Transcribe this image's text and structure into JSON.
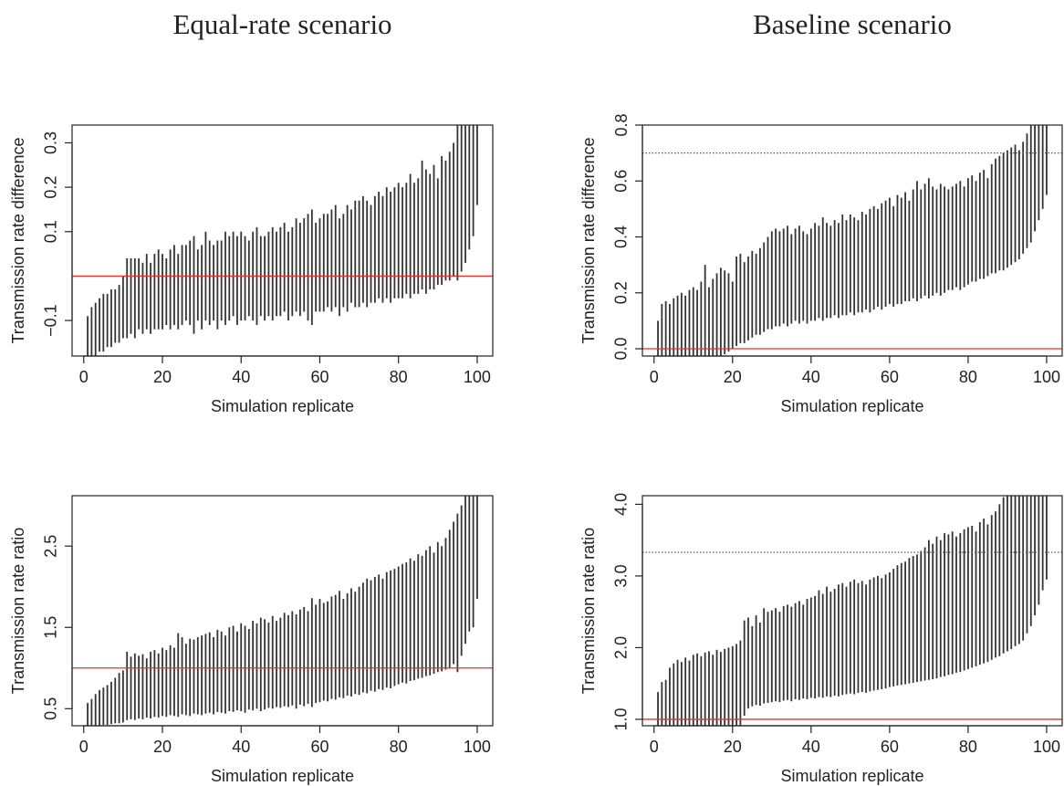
{
  "chart_data": [
    {
      "type": "range",
      "title": "Equal-rate scenario",
      "xlabel": "Simulation replicate",
      "ylabel": "Transmission rate difference",
      "color": "#333333",
      "x": [
        1,
        2,
        3,
        4,
        5,
        6,
        7,
        8,
        9,
        10,
        11,
        12,
        13,
        14,
        15,
        16,
        17,
        18,
        19,
        20,
        21,
        22,
        23,
        24,
        25,
        26,
        27,
        28,
        29,
        30,
        31,
        32,
        33,
        34,
        35,
        36,
        37,
        38,
        39,
        40,
        41,
        42,
        43,
        44,
        45,
        46,
        47,
        48,
        49,
        50,
        51,
        52,
        53,
        54,
        55,
        56,
        57,
        58,
        59,
        60,
        61,
        62,
        63,
        64,
        65,
        66,
        67,
        68,
        69,
        70,
        71,
        72,
        73,
        74,
        75,
        76,
        77,
        78,
        79,
        80,
        81,
        82,
        83,
        84,
        85,
        86,
        87,
        88,
        89,
        90,
        91,
        92,
        93,
        94,
        95,
        96,
        97,
        98,
        99,
        100
      ],
      "low": [
        -0.21,
        -0.19,
        -0.18,
        -0.17,
        -0.17,
        -0.16,
        -0.16,
        -0.15,
        -0.15,
        -0.14,
        -0.14,
        -0.13,
        -0.14,
        -0.12,
        -0.13,
        -0.12,
        -0.13,
        -0.12,
        -0.12,
        -0.12,
        -0.11,
        -0.12,
        -0.11,
        -0.12,
        -0.11,
        -0.1,
        -0.11,
        -0.13,
        -0.1,
        -0.12,
        -0.1,
        -0.11,
        -0.1,
        -0.12,
        -0.1,
        -0.11,
        -0.1,
        -0.09,
        -0.11,
        -0.1,
        -0.1,
        -0.09,
        -0.1,
        -0.11,
        -0.09,
        -0.1,
        -0.09,
        -0.1,
        -0.09,
        -0.09,
        -0.08,
        -0.1,
        -0.09,
        -0.08,
        -0.09,
        -0.08,
        -0.1,
        -0.11,
        -0.08,
        -0.08,
        -0.08,
        -0.07,
        -0.08,
        -0.07,
        -0.09,
        -0.07,
        -0.08,
        -0.06,
        -0.07,
        -0.07,
        -0.06,
        -0.07,
        -0.06,
        -0.06,
        -0.05,
        -0.06,
        -0.05,
        -0.06,
        -0.05,
        -0.05,
        -0.05,
        -0.04,
        -0.05,
        -0.04,
        -0.04,
        -0.03,
        -0.04,
        -0.03,
        -0.03,
        -0.02,
        -0.02,
        -0.01,
        -0.01,
        0,
        -0.01,
        0.01,
        0.03,
        0.06,
        0.09,
        0.16
      ],
      "high": [
        -0.09,
        -0.07,
        -0.06,
        -0.05,
        -0.04,
        -0.04,
        -0.03,
        -0.03,
        -0.02,
        0,
        0.04,
        0.04,
        0.04,
        0.04,
        0.03,
        0.05,
        0.03,
        0.05,
        0.06,
        0.05,
        0.04,
        0.06,
        0.07,
        0.05,
        0.07,
        0.07,
        0.08,
        0.09,
        0.06,
        0.07,
        0.1,
        0.08,
        0.07,
        0.08,
        0.08,
        0.1,
        0.09,
        0.1,
        0.09,
        0.1,
        0.09,
        0.08,
        0.1,
        0.11,
        0.09,
        0.09,
        0.1,
        0.11,
        0.1,
        0.11,
        0.12,
        0.1,
        0.11,
        0.13,
        0.12,
        0.13,
        0.14,
        0.15,
        0.12,
        0.13,
        0.14,
        0.14,
        0.15,
        0.16,
        0.13,
        0.14,
        0.16,
        0.15,
        0.17,
        0.17,
        0.18,
        0.17,
        0.16,
        0.18,
        0.19,
        0.18,
        0.2,
        0.19,
        0.2,
        0.21,
        0.2,
        0.21,
        0.23,
        0.21,
        0.22,
        0.26,
        0.24,
        0.23,
        0.25,
        0.22,
        0.27,
        0.26,
        0.28,
        0.3,
        0.34,
        0.36,
        0.37,
        0.4,
        0.42,
        0.45
      ],
      "xlim": [
        -2.96,
        103.96
      ],
      "xticks": [
        0,
        20,
        40,
        60,
        80,
        100
      ],
      "ylim": [
        -0.18,
        0.34
      ],
      "yticks": [
        {
          "value": -0.1,
          "label": "−0.1"
        },
        0.1,
        0.2,
        0.3
      ],
      "hlines": [
        {
          "value": 0,
          "color": "#e8302a",
          "style": "solid"
        }
      ]
    },
    {
      "type": "range",
      "title": "Baseline scenario",
      "xlabel": "Simulation replicate",
      "ylabel": "Transmission rate difference",
      "color": "#333333",
      "x": [
        1,
        2,
        3,
        4,
        5,
        6,
        7,
        8,
        9,
        10,
        11,
        12,
        13,
        14,
        15,
        16,
        17,
        18,
        19,
        20,
        21,
        22,
        23,
        24,
        25,
        26,
        27,
        28,
        29,
        30,
        31,
        32,
        33,
        34,
        35,
        36,
        37,
        38,
        39,
        40,
        41,
        42,
        43,
        44,
        45,
        46,
        47,
        48,
        49,
        50,
        51,
        52,
        53,
        54,
        55,
        56,
        57,
        58,
        59,
        60,
        61,
        62,
        63,
        64,
        65,
        66,
        67,
        68,
        69,
        70,
        71,
        72,
        73,
        74,
        75,
        76,
        77,
        78,
        79,
        80,
        81,
        82,
        83,
        84,
        85,
        86,
        87,
        88,
        89,
        90,
        91,
        92,
        93,
        94,
        95,
        96,
        97,
        98,
        99,
        100
      ],
      "low": [
        -0.05,
        -0.05,
        -0.05,
        -0.04,
        -0.05,
        -0.04,
        -0.04,
        -0.04,
        -0.04,
        -0.04,
        -0.04,
        -0.03,
        -0.04,
        -0.03,
        -0.03,
        -0.03,
        -0.03,
        -0.02,
        -0.01,
        0,
        0.01,
        0.02,
        0.02,
        0.03,
        0.04,
        0.05,
        0.05,
        0.06,
        0.07,
        0.07,
        0.08,
        0.08,
        0.09,
        0.08,
        0.09,
        0.1,
        0.09,
        0.1,
        0.09,
        0.1,
        0.1,
        0.11,
        0.1,
        0.11,
        0.11,
        0.12,
        0.11,
        0.12,
        0.12,
        0.13,
        0.12,
        0.13,
        0.13,
        0.14,
        0.13,
        0.14,
        0.15,
        0.14,
        0.15,
        0.16,
        0.15,
        0.16,
        0.16,
        0.17,
        0.17,
        0.18,
        0.17,
        0.18,
        0.19,
        0.18,
        0.19,
        0.2,
        0.19,
        0.2,
        0.21,
        0.21,
        0.22,
        0.21,
        0.22,
        0.23,
        0.24,
        0.24,
        0.25,
        0.25,
        0.26,
        0.27,
        0.27,
        0.28,
        0.28,
        0.29,
        0.3,
        0.31,
        0.32,
        0.34,
        0.36,
        0.38,
        0.42,
        0.46,
        0.5,
        0.55
      ],
      "high": [
        0.1,
        0.16,
        0.17,
        0.16,
        0.18,
        0.19,
        0.2,
        0.19,
        0.21,
        0.22,
        0.21,
        0.24,
        0.3,
        0.22,
        0.25,
        0.27,
        0.29,
        0.28,
        0.27,
        0.24,
        0.33,
        0.34,
        0.31,
        0.33,
        0.35,
        0.34,
        0.36,
        0.38,
        0.4,
        0.42,
        0.43,
        0.42,
        0.43,
        0.44,
        0.41,
        0.43,
        0.44,
        0.42,
        0.41,
        0.43,
        0.45,
        0.44,
        0.47,
        0.45,
        0.44,
        0.46,
        0.45,
        0.48,
        0.46,
        0.48,
        0.47,
        0.46,
        0.49,
        0.48,
        0.5,
        0.51,
        0.5,
        0.52,
        0.53,
        0.54,
        0.51,
        0.55,
        0.54,
        0.56,
        0.53,
        0.57,
        0.6,
        0.57,
        0.59,
        0.61,
        0.58,
        0.57,
        0.59,
        0.58,
        0.57,
        0.58,
        0.59,
        0.6,
        0.58,
        0.61,
        0.62,
        0.6,
        0.63,
        0.64,
        0.61,
        0.66,
        0.68,
        0.69,
        0.7,
        0.71,
        0.72,
        0.73,
        0.71,
        0.74,
        0.77,
        0.8,
        0.85,
        0.88,
        0.9,
        0.92
      ],
      "xlim": [
        -2.96,
        103.96
      ],
      "xticks": [
        0,
        20,
        40,
        60,
        80,
        100
      ],
      "ylim": [
        -0.026,
        0.8
      ],
      "yticks": [
        {
          "value": 0,
          "label": "0.0"
        },
        0.2,
        0.4,
        0.6,
        0.8
      ],
      "hlines": [
        {
          "value": 0,
          "color": "#e8302a",
          "style": "solid"
        },
        {
          "value": 0.7,
          "color": "#555555",
          "style": "dotted"
        }
      ]
    },
    {
      "type": "range",
      "xlabel": "Simulation replicate",
      "ylabel": "Transmission rate ratio",
      "color": "#333333",
      "x": [
        1,
        2,
        3,
        4,
        5,
        6,
        7,
        8,
        9,
        10,
        11,
        12,
        13,
        14,
        15,
        16,
        17,
        18,
        19,
        20,
        21,
        22,
        23,
        24,
        25,
        26,
        27,
        28,
        29,
        30,
        31,
        32,
        33,
        34,
        35,
        36,
        37,
        38,
        39,
        40,
        41,
        42,
        43,
        44,
        45,
        46,
        47,
        48,
        49,
        50,
        51,
        52,
        53,
        54,
        55,
        56,
        57,
        58,
        59,
        60,
        61,
        62,
        63,
        64,
        65,
        66,
        67,
        68,
        69,
        70,
        71,
        72,
        73,
        74,
        75,
        76,
        77,
        78,
        79,
        80,
        81,
        82,
        83,
        84,
        85,
        86,
        87,
        88,
        89,
        90,
        91,
        92,
        93,
        94,
        95,
        96,
        97,
        98,
        99,
        100
      ],
      "low": [
        0.2,
        0.25,
        0.27,
        0.28,
        0.3,
        0.3,
        0.31,
        0.32,
        0.32,
        0.33,
        0.36,
        0.37,
        0.36,
        0.38,
        0.37,
        0.39,
        0.38,
        0.4,
        0.39,
        0.41,
        0.4,
        0.42,
        0.41,
        0.4,
        0.43,
        0.42,
        0.41,
        0.44,
        0.43,
        0.42,
        0.44,
        0.45,
        0.43,
        0.46,
        0.45,
        0.44,
        0.47,
        0.46,
        0.48,
        0.47,
        0.45,
        0.49,
        0.48,
        0.5,
        0.47,
        0.49,
        0.51,
        0.5,
        0.52,
        0.51,
        0.53,
        0.52,
        0.54,
        0.5,
        0.55,
        0.53,
        0.56,
        0.52,
        0.57,
        0.58,
        0.6,
        0.59,
        0.62,
        0.61,
        0.64,
        0.63,
        0.66,
        0.65,
        0.68,
        0.67,
        0.7,
        0.69,
        0.72,
        0.71,
        0.74,
        0.73,
        0.76,
        0.75,
        0.78,
        0.8,
        0.82,
        0.81,
        0.84,
        0.85,
        0.87,
        0.88,
        0.9,
        0.91,
        0.93,
        0.95,
        0.96,
        0.98,
        1,
        1.05,
        0.95,
        1.15,
        1.3,
        1.45,
        1.5,
        1.85
      ],
      "high": [
        0.57,
        0.62,
        0.68,
        0.73,
        0.76,
        0.79,
        0.83,
        0.88,
        0.94,
        0.97,
        1.2,
        1.14,
        1.18,
        1.15,
        1.17,
        1.12,
        1.2,
        1.22,
        1.18,
        1.25,
        1.22,
        1.28,
        1.25,
        1.43,
        1.38,
        1.3,
        1.36,
        1.35,
        1.38,
        1.4,
        1.42,
        1.44,
        1.38,
        1.47,
        1.45,
        1.4,
        1.5,
        1.52,
        1.45,
        1.55,
        1.52,
        1.48,
        1.58,
        1.55,
        1.62,
        1.6,
        1.56,
        1.64,
        1.58,
        1.62,
        1.68,
        1.65,
        1.7,
        1.66,
        1.72,
        1.75,
        1.7,
        1.86,
        1.78,
        1.85,
        1.8,
        1.82,
        1.88,
        1.9,
        1.95,
        1.85,
        1.92,
        1.98,
        1.94,
        2,
        2.05,
        2.1,
        2.08,
        2.12,
        2.15,
        2.1,
        2.18,
        2.2,
        2.22,
        2.25,
        2.28,
        2.3,
        2.35,
        2.32,
        2.4,
        2.38,
        2.45,
        2.5,
        2.42,
        2.55,
        2.5,
        2.6,
        2.7,
        2.8,
        2.9,
        3,
        3.2,
        3.25,
        3.3,
        3.35
      ],
      "xlim": [
        -2.96,
        103.96
      ],
      "xticks": [
        0,
        20,
        40,
        60,
        80,
        100
      ],
      "ylim": [
        0.29,
        3.12
      ],
      "yticks": [
        0.5,
        1.5,
        2.5
      ],
      "hlines": [
        {
          "value": 1,
          "color": "#e8302a",
          "style": "solid"
        }
      ]
    },
    {
      "type": "range",
      "xlabel": "Simulation replicate",
      "ylabel": "Transmission rate ratio",
      "color": "#333333",
      "x": [
        1,
        2,
        3,
        4,
        5,
        6,
        7,
        8,
        9,
        10,
        11,
        12,
        13,
        14,
        15,
        16,
        17,
        18,
        19,
        20,
        21,
        22,
        23,
        24,
        25,
        26,
        27,
        28,
        29,
        30,
        31,
        32,
        33,
        34,
        35,
        36,
        37,
        38,
        39,
        40,
        41,
        42,
        43,
        44,
        45,
        46,
        47,
        48,
        49,
        50,
        51,
        52,
        53,
        54,
        55,
        56,
        57,
        58,
        59,
        60,
        61,
        62,
        63,
        64,
        65,
        66,
        67,
        68,
        69,
        70,
        71,
        72,
        73,
        74,
        75,
        76,
        77,
        78,
        79,
        80,
        81,
        82,
        83,
        84,
        85,
        86,
        87,
        88,
        89,
        90,
        91,
        92,
        93,
        94,
        95,
        96,
        97,
        98,
        99,
        100
      ],
      "low": [
        0.85,
        0.86,
        0.86,
        0.87,
        0.87,
        0.87,
        0.88,
        0.88,
        0.88,
        0.88,
        0.89,
        0.88,
        0.89,
        0.89,
        0.89,
        0.9,
        0.89,
        0.9,
        0.9,
        0.9,
        0.91,
        0.9,
        1.05,
        1.15,
        1.18,
        1.2,
        1.19,
        1.22,
        1.23,
        1.24,
        1.25,
        1.24,
        1.26,
        1.27,
        1.25,
        1.28,
        1.27,
        1.29,
        1.28,
        1.3,
        1.29,
        1.31,
        1.3,
        1.32,
        1.31,
        1.33,
        1.32,
        1.34,
        1.35,
        1.36,
        1.35,
        1.37,
        1.38,
        1.37,
        1.39,
        1.4,
        1.41,
        1.42,
        1.43,
        1.45,
        1.46,
        1.47,
        1.48,
        1.49,
        1.5,
        1.51,
        1.52,
        1.53,
        1.54,
        1.55,
        1.56,
        1.57,
        1.59,
        1.6,
        1.62,
        1.63,
        1.65,
        1.66,
        1.68,
        1.7,
        1.72,
        1.74,
        1.76,
        1.78,
        1.8,
        1.83,
        1.86,
        1.88,
        1.92,
        1.95,
        1.98,
        2.02,
        2.05,
        2.1,
        2.2,
        2.3,
        2.45,
        2.6,
        2.8,
        2.95
      ],
      "high": [
        1.38,
        1.52,
        1.55,
        1.72,
        1.78,
        1.83,
        1.8,
        1.86,
        1.82,
        1.9,
        1.92,
        1.88,
        1.93,
        1.95,
        1.9,
        1.97,
        1.94,
        1.98,
        2,
        2.02,
        2.05,
        2.1,
        2.38,
        2.42,
        2.3,
        2.45,
        2.35,
        2.55,
        2.5,
        2.52,
        2.55,
        2.5,
        2.58,
        2.6,
        2.57,
        2.62,
        2.65,
        2.6,
        2.68,
        2.7,
        2.72,
        2.8,
        2.75,
        2.85,
        2.78,
        2.82,
        2.88,
        2.9,
        2.85,
        2.92,
        2.95,
        2.9,
        2.93,
        2.88,
        2.95,
        2.98,
        3,
        2.97,
        3.02,
        3.05,
        3.1,
        3.15,
        3.18,
        3.2,
        3.25,
        3.28,
        3.3,
        3.35,
        3.4,
        3.5,
        3.45,
        3.55,
        3.5,
        3.6,
        3.58,
        3.62,
        3.55,
        3.6,
        3.65,
        3.68,
        3.7,
        3.62,
        3.75,
        3.8,
        3.72,
        3.85,
        3.9,
        4,
        4.1,
        4.15,
        4.2,
        4.25,
        4.25,
        4.3,
        4.3,
        4.35,
        4.4,
        4.45,
        4.5,
        4.55
      ],
      "xlim": [
        -2.96,
        103.96
      ],
      "xticks": [
        0,
        20,
        40,
        60,
        80,
        100
      ],
      "ylim": [
        0.91,
        4.12
      ],
      "yticks": [
        {
          "value": 1,
          "label": "1.0"
        },
        {
          "value": 2,
          "label": "2.0"
        },
        {
          "value": 3,
          "label": "3.0"
        },
        {
          "value": 4,
          "label": "4.0"
        }
      ],
      "hlines": [
        {
          "value": 1,
          "color": "#e8302a",
          "style": "solid"
        },
        {
          "value": 3.33,
          "color": "#555555",
          "style": "dotted"
        }
      ]
    }
  ]
}
